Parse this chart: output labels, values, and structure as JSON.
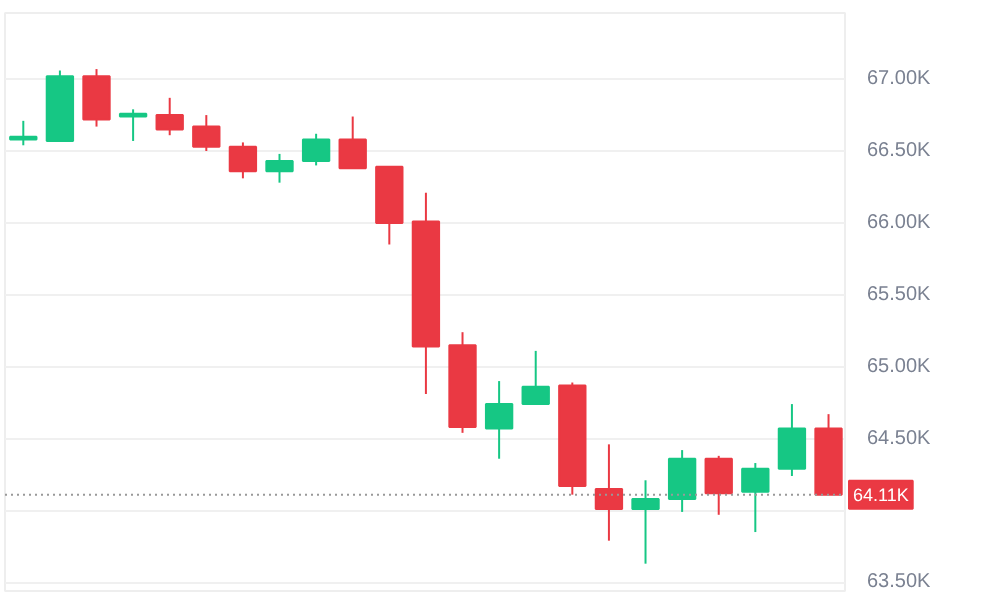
{
  "chart_data": {
    "type": "candlestick",
    "categories": [
      null,
      null,
      null,
      null,
      null,
      null,
      null,
      null,
      null,
      null,
      null,
      null,
      null,
      null,
      null,
      null,
      null,
      null,
      null,
      null,
      null,
      null,
      null
    ],
    "ohlc": [
      [
        66580,
        66710,
        66540,
        66600
      ],
      [
        66570,
        67060,
        66570,
        67020
      ],
      [
        67020,
        67070,
        66670,
        66720
      ],
      [
        66740,
        66790,
        66570,
        66760
      ],
      [
        66750,
        66870,
        66610,
        66650
      ],
      [
        66670,
        66750,
        66500,
        66530
      ],
      [
        66530,
        66560,
        66310,
        66360
      ],
      [
        66360,
        66480,
        66280,
        66430
      ],
      [
        66430,
        66620,
        66400,
        66580
      ],
      [
        66580,
        66740,
        66380,
        66380
      ],
      [
        66390,
        66390,
        65850,
        66000
      ],
      [
        66010,
        66210,
        64810,
        65140
      ],
      [
        65150,
        65240,
        64540,
        64580
      ],
      [
        64570,
        64900,
        64360,
        64740
      ],
      [
        64740,
        65110,
        64740,
        64860
      ],
      [
        64870,
        64890,
        64110,
        64170
      ],
      [
        64150,
        64460,
        63790,
        64010
      ],
      [
        64010,
        64210,
        63630,
        64080
      ],
      [
        64080,
        64420,
        63990,
        64360
      ],
      [
        64360,
        64380,
        63970,
        64120
      ],
      [
        64130,
        64330,
        63850,
        64290
      ],
      [
        64290,
        64740,
        64240,
        64570
      ],
      [
        64570,
        64670,
        64110,
        64110
      ]
    ],
    "colors": [
      "#16c784",
      "#16c784",
      "#ea3943",
      "#16c784",
      "#ea3943",
      "#ea3943",
      "#ea3943",
      "#16c784",
      "#16c784",
      "#ea3943",
      "#ea3943",
      "#ea3943",
      "#ea3943",
      "#16c784",
      "#16c784",
      "#ea3943",
      "#ea3943",
      "#16c784",
      "#16c784",
      "#ea3943",
      "#16c784",
      "#16c784",
      "#ea3943"
    ],
    "ylim": [
      63440,
      67460
    ],
    "yticks": [
      {
        "value": 63500,
        "label": "63.50K"
      },
      {
        "value": 64000,
        "label": null
      },
      {
        "value": 64500,
        "label": "64.50K"
      },
      {
        "value": 65000,
        "label": "65.00K"
      },
      {
        "value": 65500,
        "label": "65.50K"
      },
      {
        "value": 66000,
        "label": "66.00K"
      },
      {
        "value": 66500,
        "label": "66.50K"
      },
      {
        "value": 67000,
        "label": "67.00K"
      }
    ],
    "ref_lines": [
      {
        "axis": "y",
        "value": 64110,
        "label": "64.11K",
        "line_style": "dotted"
      }
    ],
    "grid": "y",
    "tick_labels": "y"
  }
}
